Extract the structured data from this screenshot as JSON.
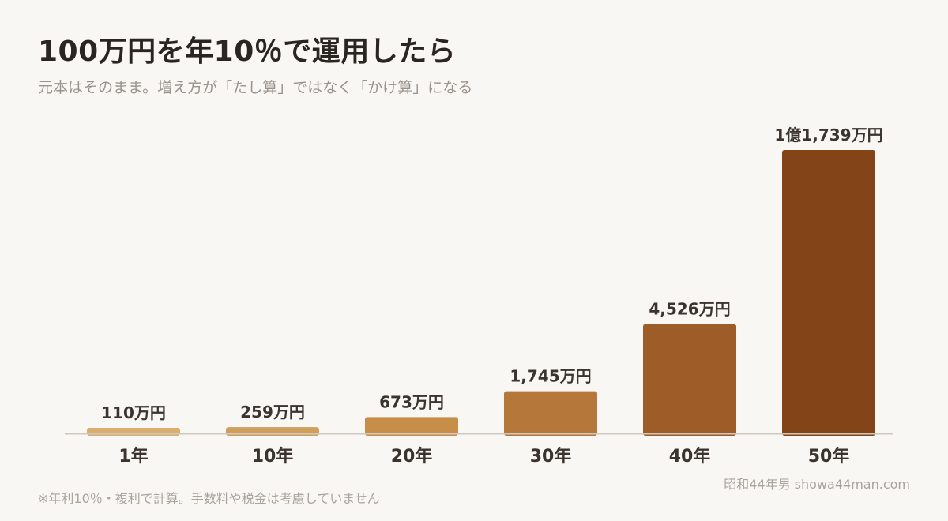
{
  "header": {
    "title": "100万円を年10％で運用したら",
    "subtitle": "元本はそのまま。増え方が「たし算」ではなく「かけ算」になる"
  },
  "footer": {
    "note": "※年利10％・複利で計算。手数料や税金は考慮していません",
    "credit": "昭和44年男 showa44man.com"
  },
  "colors": {
    "background": "#f9f7f3",
    "axis": "#cfc8c0",
    "label_text": "#3a332e",
    "bars": [
      "#d9ae6e",
      "#cfa05c",
      "#c68e48",
      "#b5773a",
      "#9d5c28",
      "#834518"
    ]
  },
  "chart_data": {
    "type": "bar",
    "categories": [
      "1年",
      "10年",
      "20年",
      "30年",
      "40年",
      "50年"
    ],
    "values": [
      110,
      259,
      673,
      1745,
      4526,
      11739
    ],
    "value_labels": [
      "110万円",
      "259万円",
      "673万円",
      "1,745万円",
      "4,526万円",
      "1億1,739万円"
    ],
    "unit": "万円",
    "ylim": [
      0,
      11739
    ],
    "grid": false,
    "legend": "none"
  }
}
